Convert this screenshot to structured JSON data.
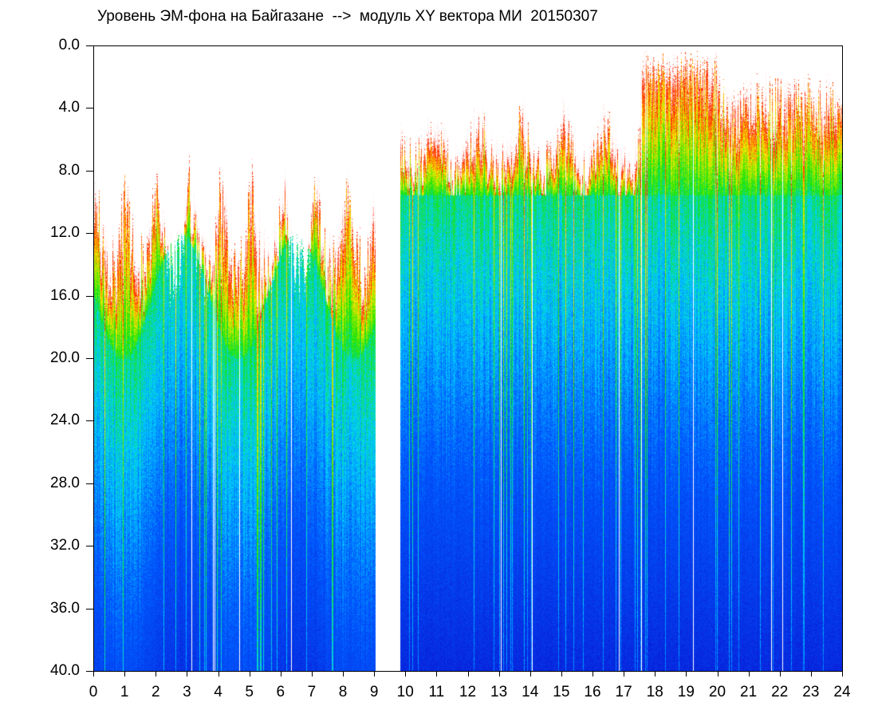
{
  "chart_data": {
    "type": "heatmap",
    "title": "Уровень ЭМ-фона на Байгазане  -->  модуль XY вектора МИ  20150307",
    "x_ticks": [
      "0",
      "1",
      "2",
      "3",
      "4",
      "5",
      "6",
      "7",
      "8",
      "9",
      "10",
      "11",
      "12",
      "13",
      "14",
      "15",
      "16",
      "17",
      "18",
      "19",
      "20",
      "21",
      "22",
      "23",
      "24"
    ],
    "y_ticks": [
      "0.0",
      "4.0",
      "8.0",
      "12.0",
      "16.0",
      "20.0",
      "24.0",
      "28.0",
      "32.0",
      "36.0",
      "40.0"
    ],
    "xlim": [
      0,
      24
    ],
    "ylim": [
      0,
      40
    ],
    "y_inverted": true,
    "data_gap_hours": [
      9.0,
      9.8
    ],
    "colors": {
      "background": "#ffffff",
      "low": "#0a14d2",
      "mid_low": "#00d2ff",
      "mid": "#19e600",
      "high": "#ffea00",
      "peak": "#ff1e00"
    }
  }
}
